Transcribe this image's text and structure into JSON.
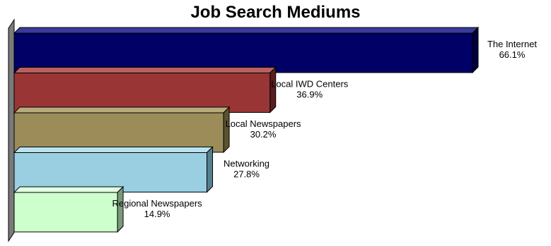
{
  "chart_data": {
    "type": "bar",
    "orientation": "horizontal",
    "three_d": true,
    "title": "Job Search Mediums",
    "categories": [
      "The Internet",
      "Local IWD Centers",
      "Local Newspapers",
      "Networking",
      "Regional Newspapers"
    ],
    "values": [
      66.1,
      36.9,
      30.2,
      27.8,
      14.9
    ],
    "value_labels": [
      "66.1%",
      "36.9%",
      "30.2%",
      "27.8%",
      "14.9%"
    ],
    "unit": "%",
    "xlim": [
      0,
      66.1
    ],
    "grid": false,
    "legend": "none",
    "colors": [
      "#000066",
      "#993535",
      "#9b8c5a",
      "#99cfe0",
      "#ccffcc"
    ],
    "side_colors": [
      "#00003a",
      "#5a1e1e",
      "#5c5230",
      "#557f8e",
      "#7a9a7a"
    ],
    "top_colors": [
      "#3a3a9a",
      "#b86060",
      "#b8aa7a",
      "#b9e2ee",
      "#e2ffe2"
    ]
  }
}
